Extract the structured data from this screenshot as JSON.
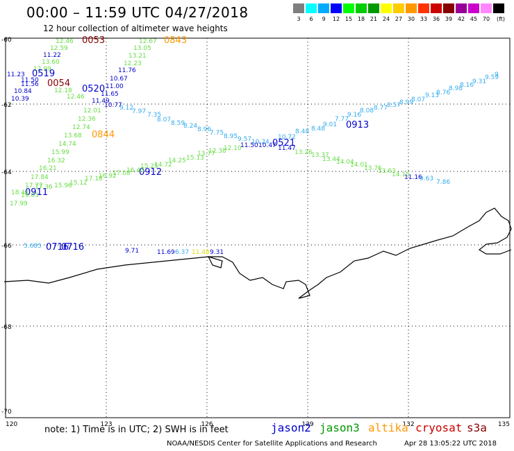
{
  "header": {
    "title": "00:00 – 11:59 UTC 04/27/2018",
    "subtitle": "12 hour collection of altimeter wave heights"
  },
  "legend": {
    "unit": "(ft)",
    "items": [
      {
        "label": "3",
        "color": "#7f7f7f"
      },
      {
        "label": "6",
        "color": "#00ffff"
      },
      {
        "label": "9",
        "color": "#00aaff"
      },
      {
        "label": "12",
        "color": "#0000ff"
      },
      {
        "label": "15",
        "color": "#00ff00"
      },
      {
        "label": "18",
        "color": "#00cc00"
      },
      {
        "label": "21",
        "color": "#009900"
      },
      {
        "label": "24",
        "color": "#ffff00"
      },
      {
        "label": "27",
        "color": "#ffcc00"
      },
      {
        "label": "30",
        "color": "#ff9900"
      },
      {
        "label": "33",
        "color": "#ff3300"
      },
      {
        "label": "36",
        "color": "#cc0000"
      },
      {
        "label": "39",
        "color": "#880000"
      },
      {
        "label": "42",
        "color": "#990099"
      },
      {
        "label": "45",
        "color": "#cc00cc"
      },
      {
        "label": "70",
        "color": "#ff88ff"
      },
      {
        "label": "",
        "color": "#000000"
      }
    ]
  },
  "axes": {
    "lat_labels": [
      "-60",
      "-62",
      "-64",
      "-66",
      "-68",
      "-70"
    ],
    "lon_labels": [
      "120",
      "123",
      "126",
      "129",
      "132",
      "135"
    ]
  },
  "tracks": {
    "green_nw": {
      "color": "#66dd44",
      "values": [
        "12.46",
        "12.59",
        "13.60",
        "12.99",
        "12.18",
        "12.46"
      ]
    },
    "blue_nw": {
      "color": "#0000cc",
      "values": [
        "11.22",
        "11.23",
        "11.50",
        "11.56",
        "10.84",
        "10.39"
      ]
    },
    "green_ne": {
      "color": "#66dd44",
      "values": [
        "12.67",
        "13.05",
        "13.21",
        "12.23"
      ]
    },
    "blue_ne": {
      "color": "#0000cc",
      "values": [
        "11.76",
        "10.67",
        "11.00",
        "11.65",
        "11.49",
        "10.77"
      ]
    },
    "time_labels": [
      {
        "text": "0053",
        "color": "#880000"
      },
      {
        "text": "0843",
        "color": "#ff9900"
      },
      {
        "text": "0519",
        "color": "#0000cc"
      },
      {
        "text": "0054",
        "color": "#880000"
      },
      {
        "text": "0520",
        "color": "#0000cc"
      },
      {
        "text": "0844",
        "color": "#ff9900"
      },
      {
        "text": "0521",
        "color": "#0000cc"
      },
      {
        "text": "0913",
        "color": "#0000cc"
      },
      {
        "text": "0912",
        "color": "#0000cc"
      },
      {
        "text": "0911",
        "color": "#0000cc"
      },
      {
        "text": "0716",
        "color": "#0000cc"
      },
      {
        "text": "0716",
        "color": "#0000cc"
      }
    ],
    "cyan_diag": {
      "color": "#33aaee",
      "values": [
        "9.12",
        "7.97",
        "7.35",
        "8.07",
        "8.59",
        "8.24",
        "8.96",
        "7.75",
        "8.95",
        "9.57",
        "10.24",
        "10.72",
        "8.48",
        "8.48",
        "9.01",
        "7.77",
        "9.16",
        "8.08",
        "8.77",
        "8.57",
        "8.99",
        "8.07",
        "9.13",
        "8.76",
        "8.98",
        "8.16",
        "9.31",
        "9.59",
        "9"
      ]
    },
    "green_diag": {
      "color": "#66dd44",
      "values": [
        "12.01",
        "12.36",
        "12.74",
        "13.68",
        "14.74",
        "15.99",
        "16.32",
        "16.21",
        "17.84",
        "17.77",
        "17.36",
        "18.47",
        "19.03",
        "17.99"
      ]
    },
    "green_east": {
      "color": "#66dd44",
      "values": [
        "15.96",
        "15.12",
        "17.18",
        "16.92",
        "17.08",
        "16.43",
        "15.25",
        "14.72",
        "14.25",
        "15.13",
        "13.77",
        "12.38",
        "12.10",
        "13.26",
        "13.37",
        "13.44",
        "14.04",
        "14.01",
        "13.76",
        "13.63",
        "14.15"
      ]
    },
    "blue_misc": {
      "color": "#0000cc",
      "values": [
        "11.50",
        "10.47",
        "11.47",
        "11.16",
        "9.71",
        "11.69",
        "9.31"
      ]
    },
    "cyan_misc": {
      "color": "#33aaee",
      "values": [
        "9.63",
        "7.86",
        "5.685",
        "6.37"
      ]
    },
    "yellow_misc": {
      "color": "#dddd00",
      "values": [
        "11.48"
      ]
    }
  },
  "footer": {
    "note": "note:  1) Time is in UTC;  2) SWH is in feet",
    "satellites": [
      {
        "name": "jason2",
        "color": "#0000cc"
      },
      {
        "name": "jason3",
        "color": "#009900"
      },
      {
        "name": "altika",
        "color": "#ff9900"
      },
      {
        "name": "cryosat",
        "color": "#cc0000"
      },
      {
        "name": "s3a",
        "color": "#880000"
      }
    ],
    "credit": "NOAA/NESDIS Center for Satellite Applications and Research",
    "generated": "Apr 28 13:05:22 UTC 2018"
  }
}
